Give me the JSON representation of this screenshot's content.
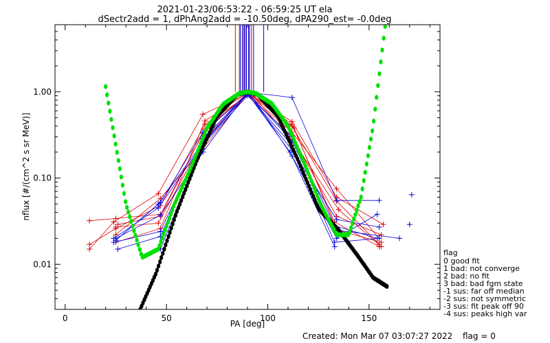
{
  "figure": {
    "title_line1": "2021-01-23/06:53:22 - 06:59:25 UT ela",
    "title_line2": "dSectr2add = 1, dPhAng2add = -10.50deg, dPA290_est=  -0.0deg",
    "footer_created": "Created: Mon Mar 07 03:07:27 2022",
    "footer_flag": "flag = 0"
  },
  "legend": {
    "title": "flag",
    "entries": [
      " 0 good fit",
      " 1 bad: not converge",
      " 2 bad: no fit",
      " 3 bad: bad fgm state",
      "-1 sus: far off median",
      "-2 sus: not symmetric",
      "-3 sus: fit peak off 90",
      "-4 sus: peaks high var"
    ]
  },
  "colors": {
    "red": "#e00000",
    "blue": "#0000e0",
    "green": "#00e000",
    "black": "#000000"
  },
  "chart_data": {
    "type": "line",
    "xlabel": "PA [deg]",
    "ylabel": "nflux [#/(cm^2 s sr MeV)]",
    "xlim": [
      -5,
      185
    ],
    "ylim": [
      0.003,
      6
    ],
    "yscale": "log",
    "x_ticks": [
      0,
      50,
      100,
      150
    ],
    "x_tick_labels": [
      "0",
      "50",
      "100",
      "150"
    ],
    "y_ticks": [
      0.01,
      0.1,
      1.0
    ],
    "y_tick_labels": [
      "0.01",
      "0.10",
      "1.00"
    ],
    "grid": false,
    "legend_position": "right-bottom",
    "series": [
      {
        "color": "red",
        "x": [
          12,
          24,
          46,
          68,
          91,
          112,
          133,
          155
        ],
        "y": [
          0.015,
          0.031,
          0.066,
          0.55,
          0.97,
          0.42,
          0.031,
          0.016
        ]
      },
      {
        "color": "red",
        "x": [
          12,
          25,
          47,
          69,
          91,
          113,
          134,
          156
        ],
        "y": [
          0.017,
          0.026,
          0.048,
          0.42,
          0.93,
          0.38,
          0.025,
          0.018
        ]
      },
      {
        "color": "red",
        "x": [
          12,
          25,
          47,
          68,
          90,
          112,
          134,
          157
        ],
        "y": [
          0.032,
          0.034,
          0.038,
          0.33,
          0.96,
          0.45,
          0.06,
          0.029
        ]
      },
      {
        "color": "red",
        "x": [
          25,
          47,
          68,
          90,
          112,
          134,
          155
        ],
        "y": [
          0.022,
          0.058,
          0.22,
          0.95,
          0.34,
          0.075,
          0.02
        ]
      },
      {
        "color": "red",
        "x": [
          25,
          46,
          68,
          91,
          112,
          134,
          155
        ],
        "y": [
          0.027,
          0.03,
          0.27,
          0.98,
          0.4,
          0.054,
          0.017
        ]
      },
      {
        "color": "red",
        "x": [
          26,
          47,
          69,
          90,
          112,
          134,
          156
        ],
        "y": [
          0.029,
          0.036,
          0.37,
          0.94,
          0.3,
          0.036,
          0.022
        ]
      },
      {
        "color": "red",
        "x": [
          25,
          47,
          69,
          91,
          113,
          135,
          156
        ],
        "y": [
          0.018,
          0.026,
          0.46,
          1.0,
          0.26,
          0.043,
          0.016
        ]
      },
      {
        "color": "blue",
        "x": [
          25,
          47,
          68,
          90,
          112,
          134,
          155
        ],
        "y": [
          0.02,
          0.037,
          0.2,
          0.99,
          0.86,
          0.055,
          0.055
        ]
      },
      {
        "color": "blue",
        "x": [
          25,
          47,
          68,
          91,
          112,
          134,
          154
        ],
        "y": [
          0.019,
          0.052,
          0.34,
          0.97,
          0.18,
          0.02,
          0.038
        ]
      },
      {
        "color": "blue",
        "x": [
          26,
          47,
          68,
          90,
          112,
          133,
          155
        ],
        "y": [
          0.015,
          0.021,
          0.29,
          0.93,
          0.24,
          0.018,
          0.02
        ]
      },
      {
        "color": "blue",
        "x": [
          25,
          46,
          68,
          90,
          112,
          134,
          155
        ],
        "y": [
          0.019,
          0.05,
          0.26,
          0.95,
          0.21,
          0.033,
          0.027
        ]
      },
      {
        "color": "blue",
        "x": [
          24,
          46,
          67,
          90,
          111,
          133,
          154
        ],
        "y": [
          0.02,
          0.045,
          0.23,
          0.9,
          0.32,
          0.028,
          0.02
        ]
      },
      {
        "color": "blue",
        "x": [
          24,
          47,
          68,
          90,
          112,
          133,
          165
        ],
        "y": [
          0.018,
          0.024,
          0.28,
          0.98,
          0.27,
          0.025,
          0.02
        ]
      },
      {
        "color": "blue",
        "x": [
          47,
          68,
          90,
          111,
          133
        ],
        "y": [
          0.015,
          0.25,
          0.96,
          0.2,
          0.016
        ]
      }
    ],
    "isolated_points": [
      {
        "color": "blue",
        "x": 171,
        "y": 0.064
      },
      {
        "color": "blue",
        "x": 170,
        "y": 0.029
      }
    ],
    "spikes": {
      "red_x": [
        84,
        86,
        88,
        89,
        91,
        92
      ],
      "blue_x": [
        86.5,
        87.5,
        88.5,
        89.5,
        90.5,
        91,
        93,
        98
      ],
      "y_from": 1.0,
      "y_to": 6
    },
    "fits": [
      {
        "name": "green_fit",
        "color": "green",
        "x_range": [
          20,
          158
        ],
        "form": "quartic",
        "x": [
          20,
          30,
          38,
          46,
          54,
          62,
          70,
          78,
          86,
          90,
          94,
          102,
          110,
          118,
          126,
          134,
          140,
          146,
          152,
          158
        ],
        "y": [
          1.15,
          0.05,
          0.012,
          0.015,
          0.05,
          0.13,
          0.38,
          0.72,
          0.96,
          1.0,
          0.96,
          0.73,
          0.4,
          0.15,
          0.05,
          0.022,
          0.022,
          0.06,
          0.4,
          6.0
        ]
      },
      {
        "name": "black_fit",
        "color": "black",
        "x_range": [
          37,
          159
        ],
        "form": "gaussian",
        "x": [
          37,
          45,
          55,
          65,
          75,
          85,
          90,
          95,
          105,
          115,
          125,
          135,
          145,
          152,
          159
        ],
        "y": [
          0.003,
          0.008,
          0.04,
          0.16,
          0.52,
          0.93,
          1.0,
          0.93,
          0.52,
          0.16,
          0.044,
          0.025,
          0.012,
          0.007,
          0.0055
        ]
      }
    ]
  }
}
